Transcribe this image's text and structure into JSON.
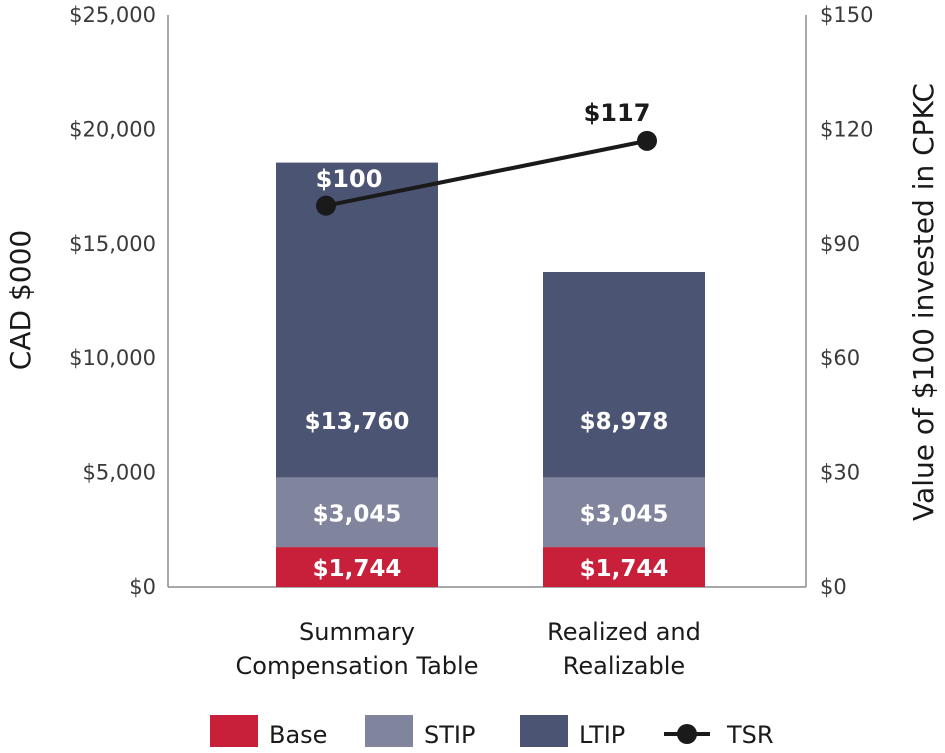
{
  "chart_data": {
    "type": "bar",
    "stacked": true,
    "title": "",
    "ylabel": "CAD $000",
    "y2label": "Value of $100 invested in CPKC",
    "ylim": [
      0,
      25000
    ],
    "y2lim": [
      0,
      150
    ],
    "y_ticks": [
      "$0",
      "$5,000",
      "$10,000",
      "$15,000",
      "$20,000",
      "$25,000"
    ],
    "y2_ticks": [
      "$0",
      "$30",
      "$60",
      "$90",
      "$120",
      "$150"
    ],
    "y_tick_values": [
      0,
      5000,
      10000,
      15000,
      20000,
      25000
    ],
    "y2_tick_values": [
      0,
      30,
      60,
      90,
      120,
      150
    ],
    "categories": [
      [
        "Summary",
        "Compensation Table"
      ],
      [
        "Realized and",
        "Realizable"
      ]
    ],
    "series": [
      {
        "name": "Base",
        "color": "#c8203a",
        "values": [
          1744,
          1744
        ],
        "labels": [
          "$1,744",
          "$1,744"
        ]
      },
      {
        "name": "STIP",
        "color": "#80859d",
        "values": [
          3045,
          3045
        ],
        "labels": [
          "$3,045",
          "$3,045"
        ]
      },
      {
        "name": "LTIP",
        "color": "#4b5573",
        "values": [
          13760,
          8978
        ],
        "labels": [
          "$13,760",
          "$8,978"
        ]
      }
    ],
    "line": {
      "name": "TSR",
      "axis": "right",
      "color": "#1a1a1a",
      "values": [
        100,
        117
      ],
      "labels": [
        "$100",
        "$117"
      ]
    },
    "legend": {
      "position": "bottom",
      "items": [
        "Base",
        "STIP",
        "LTIP",
        "TSR"
      ]
    },
    "grid": false
  }
}
